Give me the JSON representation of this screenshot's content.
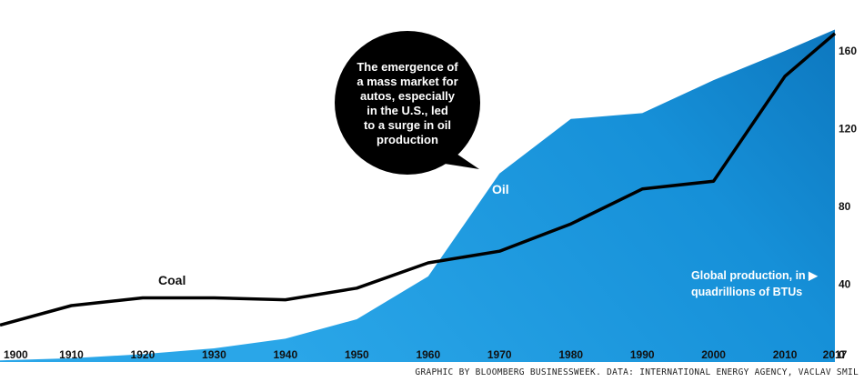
{
  "chart_data": {
    "type": "area",
    "x": [
      1900,
      1910,
      1920,
      1930,
      1940,
      1950,
      1960,
      1970,
      1980,
      1990,
      2000,
      2010,
      2017
    ],
    "x_ticks": [
      "1900",
      "1910",
      "1920",
      "1930",
      "1940",
      "1950",
      "1960",
      "1970",
      "1980",
      "1990",
      "2000",
      "2010",
      "2017"
    ],
    "y_ticks": [
      "0",
      "40",
      "80",
      "120",
      "160"
    ],
    "ylim": [
      0,
      170
    ],
    "series": [
      {
        "name": "Oil",
        "kind": "area",
        "color": "#0a85d0",
        "x": [
          1900,
          1910,
          1920,
          1930,
          1940,
          1950,
          1960,
          1970,
          1980,
          1990,
          2000,
          2010,
          2017
        ],
        "values": [
          0.8,
          1.9,
          4,
          7,
          12,
          22,
          44,
          97,
          125,
          128,
          145,
          160,
          171
        ]
      },
      {
        "name": "Coal",
        "kind": "line",
        "color": "#000000",
        "x": [
          1900,
          1910,
          1920,
          1930,
          1940,
          1950,
          1960,
          1970,
          1980,
          1990,
          2000,
          2010,
          2017
        ],
        "values": [
          19,
          29,
          33,
          33,
          32,
          38,
          51,
          57,
          71,
          89,
          93,
          147,
          169
        ]
      }
    ],
    "annotations": {
      "bubble": [
        "The emergence of",
        "a mass market for",
        "autos, especially",
        "in the U.S., led",
        "to a surge in oil",
        "production"
      ],
      "units_note": [
        "Global production, in ▶",
        "quadrillions of BTUs"
      ]
    },
    "credit": "GRAPHIC BY BLOOMBERG BUSINESSWEEK. DATA: INTERNATIONAL ENERGY AGENCY, VACLAV SMIL",
    "grid": false,
    "colors": {
      "oil_light": "#29a2e4",
      "oil_dark": "#0a78c2",
      "coal": "#000000"
    }
  }
}
